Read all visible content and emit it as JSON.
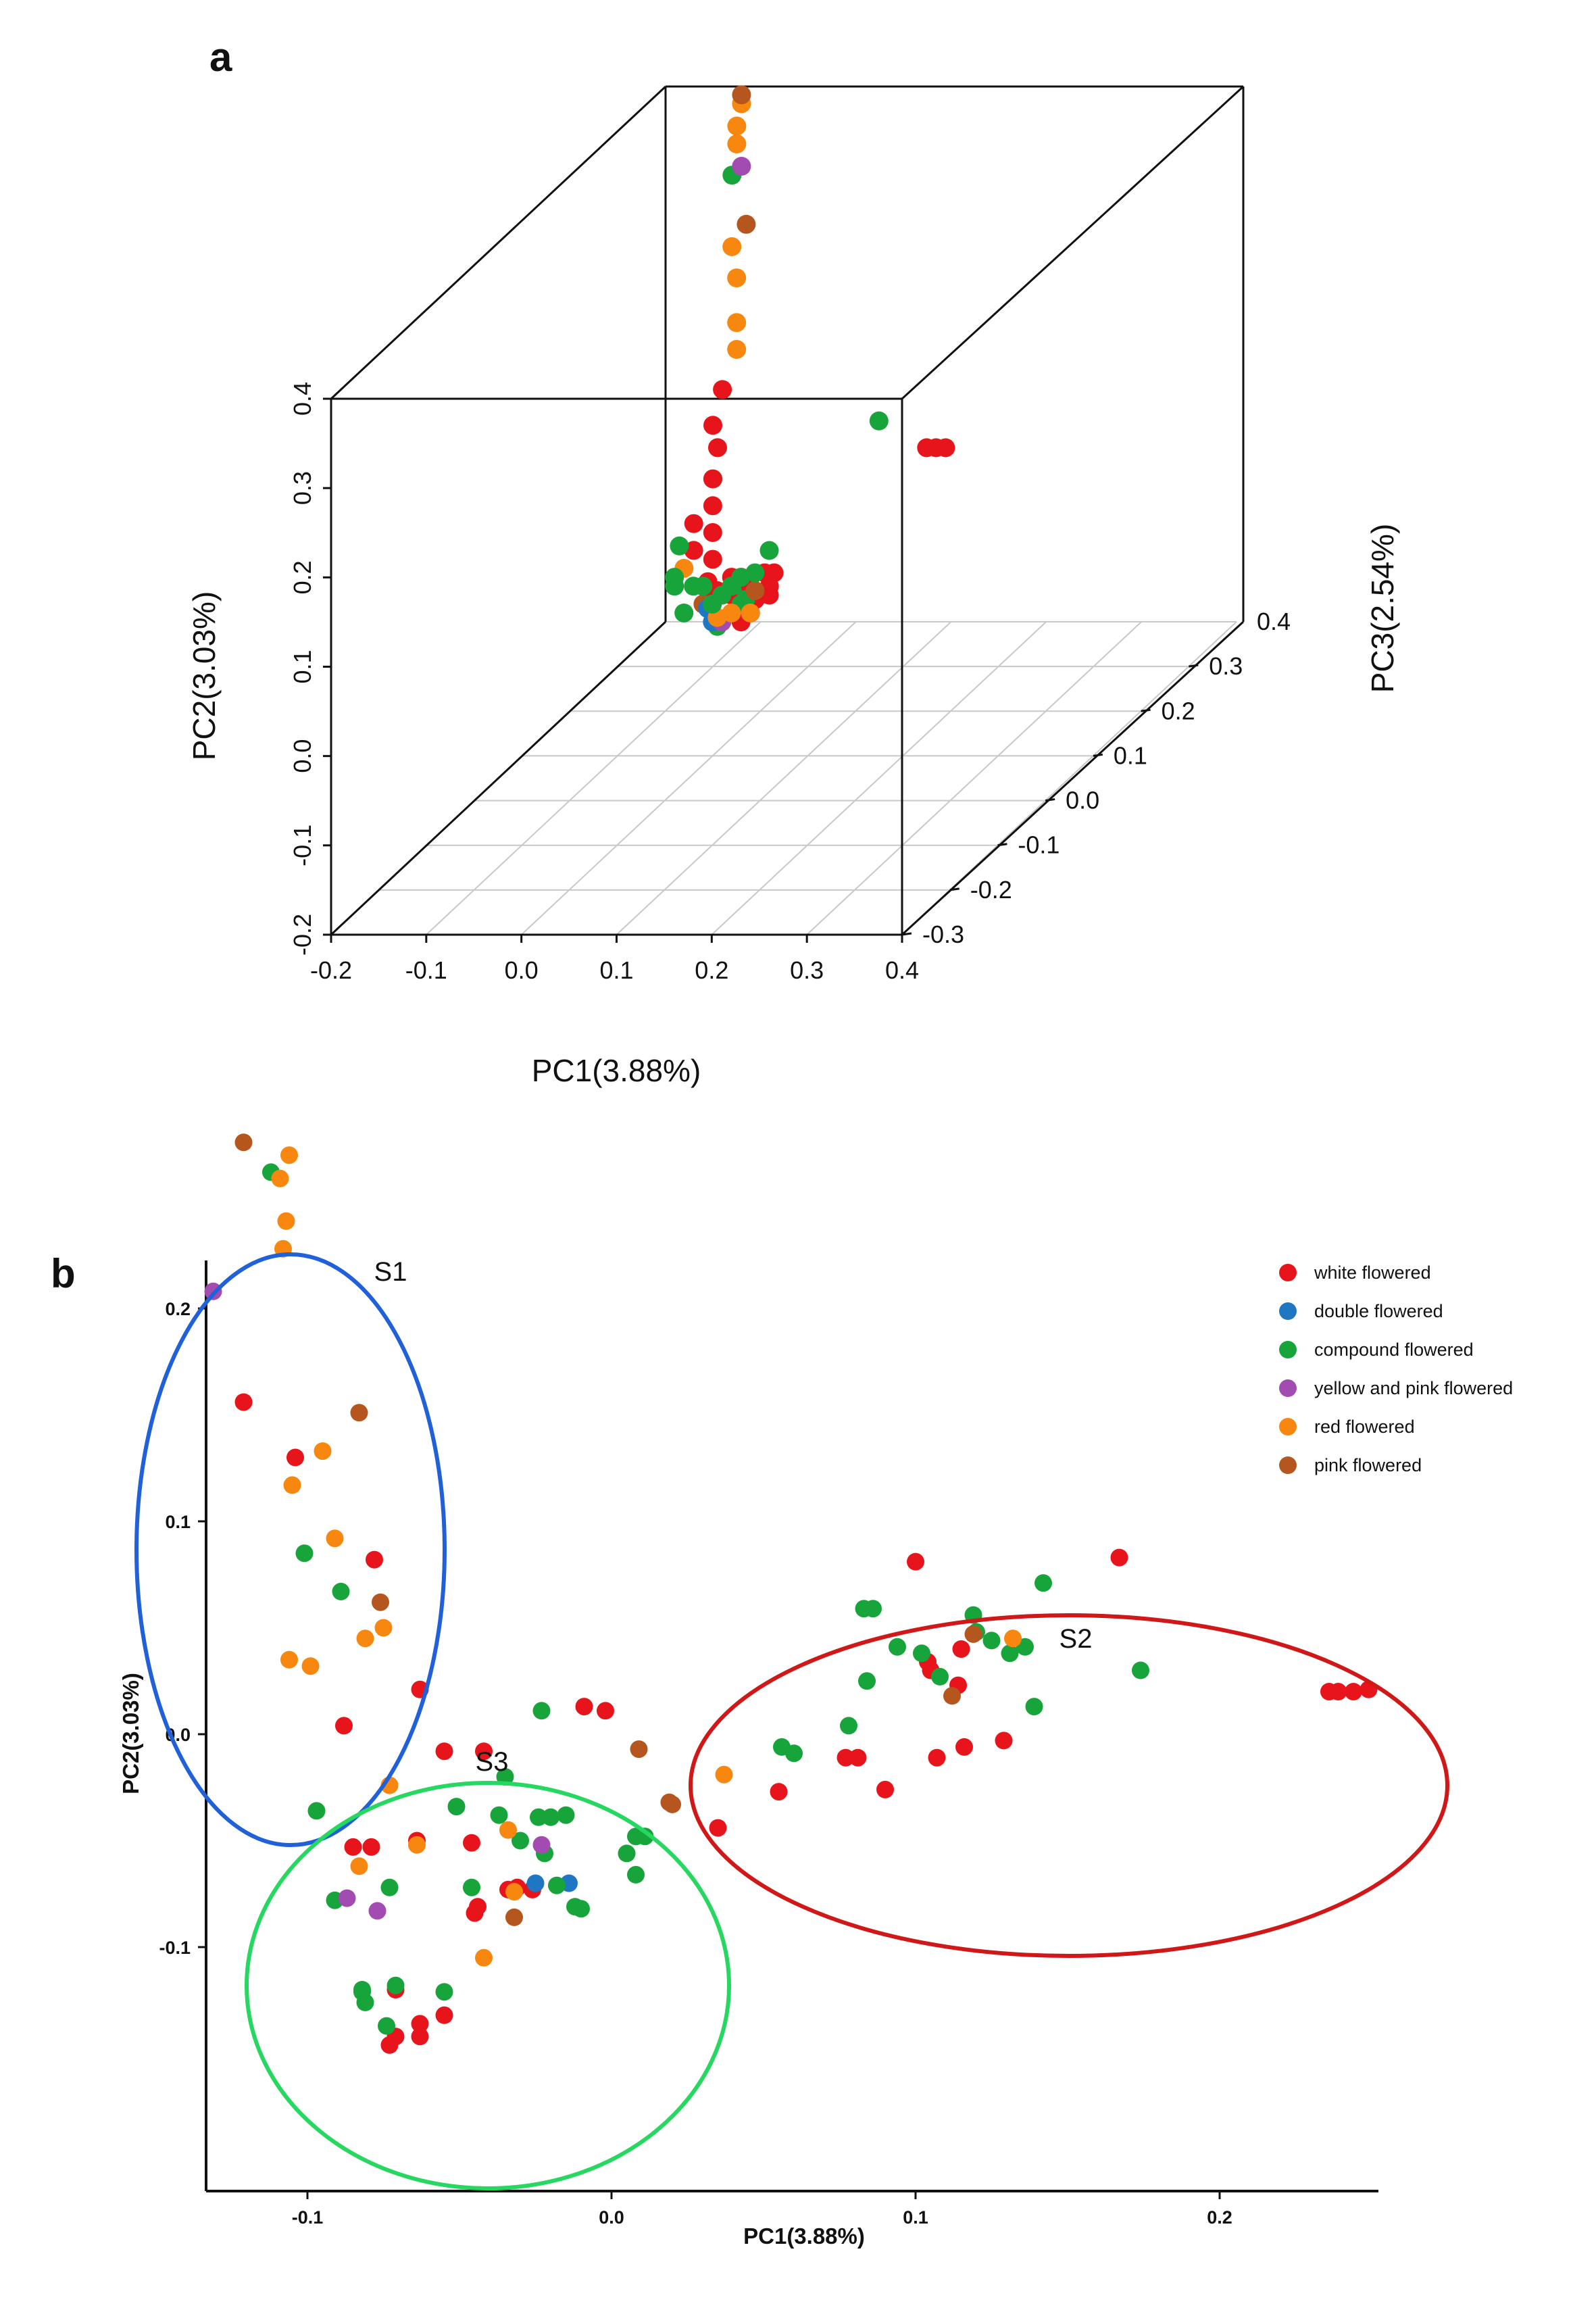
{
  "panel_a": {
    "letter": "a",
    "xlabel": "PC1(3.88%)",
    "ylabel": "PC2(3.03%)",
    "zlabel": "PC3(2.54%)",
    "x_ticks": [
      "-0.2",
      "-0.1",
      "0.0",
      "0.1",
      "0.2",
      "0.3",
      "0.4"
    ],
    "y_ticks": [
      "-0.2",
      "-0.1",
      "0.0",
      "0.1",
      "0.2",
      "0.3",
      "0.4"
    ],
    "z_ticks": [
      "-0.3",
      "-0.2",
      "-0.1",
      "0.0",
      "0.1",
      "0.2",
      "0.3",
      "0.4"
    ]
  },
  "panel_b": {
    "letter": "b",
    "xlabel": "PC1(3.88%)",
    "ylabel": "PC2(3.03%)",
    "x_ticks": [
      "-0.1",
      "0.0",
      "0.1",
      "0.2"
    ],
    "y_ticks": [
      "0.2",
      "0.1",
      "0.0",
      "-0.1"
    ],
    "groups": [
      "S1",
      "S2",
      "S3"
    ],
    "legend": [
      {
        "label": "white flowered",
        "color": "#e8141b"
      },
      {
        "label": "double flowered",
        "color": "#1f77c4"
      },
      {
        "label": "compound flowered",
        "color": "#17a43b"
      },
      {
        "label": "yellow and pink flowered",
        "color": "#a24bb0"
      },
      {
        "label": "red flowered",
        "color": "#f7870f"
      },
      {
        "label": "pink flowered",
        "color": "#b5561f"
      }
    ]
  },
  "chart_data": [
    {
      "type": "scatter",
      "dimensions": 3,
      "xlabel": "PC1(3.88%)",
      "ylabel": "PC2(3.03%)",
      "zlabel": "PC3(2.54%)",
      "xlim": [
        -0.2,
        0.4
      ],
      "ylim": [
        -0.2,
        0.4
      ],
      "zlim": [
        -0.3,
        0.4
      ],
      "series": [
        {
          "name": "white flowered",
          "color": "#e8141b",
          "points": [
            [
              -0.08,
              0.12,
              0.28
            ],
            [
              -0.08,
              0.09,
              0.26
            ],
            [
              -0.07,
              0.07,
              0.25
            ],
            [
              -0.07,
              0.04,
              0.24
            ],
            [
              -0.06,
              0.02,
              0.22
            ],
            [
              -0.05,
              0.0,
              0.2
            ],
            [
              -0.04,
              -0.02,
              0.18
            ],
            [
              -0.03,
              -0.03,
              0.15
            ],
            [
              0.0,
              -0.03,
              0.12
            ],
            [
              0.02,
              -0.02,
              0.1
            ],
            [
              0.04,
              -0.04,
              0.08
            ],
            [
              0.06,
              -0.02,
              0.06
            ],
            [
              0.07,
              0.0,
              0.05
            ],
            [
              0.08,
              0.02,
              0.02
            ],
            [
              0.1,
              0.03,
              0.0
            ],
            [
              0.12,
              0.05,
              -0.02
            ],
            [
              0.14,
              0.08,
              -0.05
            ],
            [
              0.02,
              0.0,
              0.1
            ],
            [
              0.05,
              0.02,
              0.06
            ],
            [
              0.09,
              0.04,
              0.0
            ],
            [
              0.11,
              0.06,
              -0.01
            ],
            [
              0.13,
              0.05,
              -0.04
            ],
            [
              -0.02,
              -0.05,
              0.13
            ],
            [
              0.0,
              -0.01,
              0.09
            ],
            [
              0.03,
              0.01,
              0.05
            ],
            [
              -0.07,
              0.01,
              0.2
            ],
            [
              -0.06,
              -0.01,
              0.18
            ],
            [
              0.25,
              0.17,
              0.05
            ],
            [
              0.26,
              0.17,
              0.05
            ],
            [
              0.27,
              0.17,
              0.05
            ]
          ]
        },
        {
          "name": "double flowered",
          "color": "#1f77c4",
          "points": [
            [
              0.02,
              -0.01,
              0.05
            ],
            [
              0.03,
              -0.02,
              0.04
            ]
          ]
        },
        {
          "name": "compound flowered",
          "color": "#17a43b",
          "points": [
            [
              -0.09,
              0.02,
              0.28
            ],
            [
              -0.08,
              0.35,
              0.3
            ],
            [
              -0.06,
              0.01,
              0.15
            ],
            [
              -0.05,
              -0.02,
              0.12
            ],
            [
              -0.04,
              0.0,
              0.1
            ],
            [
              -0.02,
              -0.03,
              0.08
            ],
            [
              0.0,
              0.01,
              0.06
            ],
            [
              0.02,
              0.02,
              0.04
            ],
            [
              0.04,
              0.01,
              0.02
            ],
            [
              0.06,
              0.03,
              0.0
            ],
            [
              0.08,
              0.05,
              -0.02
            ],
            [
              0.1,
              0.07,
              -0.04
            ],
            [
              0.13,
              0.09,
              -0.07
            ],
            [
              0.14,
              0.11,
              -0.06
            ],
            [
              0.03,
              -0.04,
              0.1
            ],
            [
              0.05,
              -0.01,
              0.06
            ],
            [
              0.07,
              0.02,
              0.03
            ],
            [
              0.09,
              0.03,
              -0.01
            ],
            [
              -0.01,
              -0.05,
              0.12
            ],
            [
              0.0,
              -0.06,
              0.11
            ],
            [
              0.2,
              0.2,
              0.05
            ]
          ]
        },
        {
          "name": "yellow and pink flowered",
          "color": "#a24bb0",
          "points": [
            [
              -0.07,
              0.36,
              0.3
            ],
            [
              0.02,
              -0.02,
              0.06
            ],
            [
              0.04,
              -0.02,
              0.04
            ]
          ]
        },
        {
          "name": "red flowered",
          "color": "#f7870f",
          "points": [
            [
              -0.08,
              0.42,
              0.32
            ],
            [
              -0.08,
              0.4,
              0.31
            ],
            [
              -0.08,
              0.38,
              0.31
            ],
            [
              -0.07,
              0.28,
              0.28
            ],
            [
              -0.06,
              0.25,
              0.27
            ],
            [
              -0.06,
              0.2,
              0.27
            ],
            [
              -0.05,
              0.18,
              0.25
            ],
            [
              -0.04,
              0.0,
              0.12
            ],
            [
              0.0,
              -0.04,
              0.1
            ],
            [
              0.04,
              -0.01,
              0.03
            ],
            [
              0.06,
              0.0,
              0.02
            ],
            [
              0.1,
              0.02,
              -0.02
            ]
          ]
        },
        {
          "name": "pink flowered",
          "color": "#b5561f",
          "points": [
            [
              -0.08,
              0.43,
              0.32
            ],
            [
              -0.06,
              0.3,
              0.29
            ],
            [
              0.12,
              0.06,
              -0.05
            ],
            [
              0.0,
              -0.02,
              0.08
            ]
          ]
        }
      ]
    },
    {
      "type": "scatter",
      "xlabel": "PC1(3.88%)",
      "ylabel": "PC2(3.03%)",
      "xlim": [
        -0.135,
        0.255
      ],
      "ylim": [
        -0.155,
        0.285
      ],
      "groups": [
        "S1",
        "S2",
        "S3"
      ],
      "series": [
        {
          "name": "white flowered",
          "color": "#e8141b",
          "points": [
            [
              -0.121,
              0.156
            ],
            [
              -0.104,
              0.13
            ],
            [
              -0.078,
              0.082
            ],
            [
              -0.088,
              0.004
            ],
            [
              -0.063,
              0.021
            ],
            [
              -0.055,
              -0.008
            ],
            [
              -0.042,
              -0.008
            ],
            [
              -0.009,
              0.013
            ],
            [
              -0.002,
              0.011
            ],
            [
              -0.085,
              -0.053
            ],
            [
              -0.079,
              -0.053
            ],
            [
              -0.064,
              -0.05
            ],
            [
              -0.046,
              -0.051
            ],
            [
              -0.034,
              -0.073
            ],
            [
              -0.044,
              -0.081
            ],
            [
              -0.045,
              -0.084
            ],
            [
              -0.031,
              -0.072
            ],
            [
              -0.026,
              -0.073
            ],
            [
              -0.073,
              -0.146
            ],
            [
              -0.071,
              -0.142
            ],
            [
              -0.063,
              -0.142
            ],
            [
              -0.063,
              -0.136
            ],
            [
              -0.055,
              -0.132
            ],
            [
              -0.071,
              -0.12
            ],
            [
              0.035,
              -0.044
            ],
            [
              0.055,
              -0.027
            ],
            [
              0.077,
              -0.011
            ],
            [
              0.081,
              -0.011
            ],
            [
              0.09,
              -0.026
            ],
            [
              0.1,
              0.081
            ],
            [
              0.104,
              0.034
            ],
            [
              0.105,
              0.03
            ],
            [
              0.107,
              -0.011
            ],
            [
              0.115,
              0.04
            ],
            [
              0.114,
              0.023
            ],
            [
              0.116,
              -0.006
            ],
            [
              0.129,
              -0.003
            ],
            [
              0.167,
              0.083
            ],
            [
              0.236,
              0.02
            ],
            [
              0.239,
              0.02
            ],
            [
              0.244,
              0.02
            ],
            [
              0.249,
              0.021
            ]
          ]
        },
        {
          "name": "double flowered",
          "color": "#1f77c4",
          "points": [
            [
              -0.014,
              -0.07
            ],
            [
              -0.025,
              -0.07
            ]
          ]
        },
        {
          "name": "compound flowered",
          "color": "#17a43b",
          "points": [
            [
              -0.112,
              0.264
            ],
            [
              -0.101,
              0.085
            ],
            [
              -0.089,
              0.067
            ],
            [
              -0.097,
              -0.036
            ],
            [
              -0.091,
              -0.078
            ],
            [
              -0.073,
              -0.072
            ],
            [
              -0.082,
              -0.12
            ],
            [
              -0.081,
              -0.126
            ],
            [
              -0.071,
              -0.118
            ],
            [
              -0.074,
              -0.137
            ],
            [
              -0.051,
              -0.034
            ],
            [
              -0.046,
              -0.072
            ],
            [
              -0.035,
              -0.02
            ],
            [
              -0.03,
              -0.05
            ],
            [
              -0.022,
              -0.056
            ],
            [
              -0.024,
              -0.039
            ],
            [
              -0.023,
              0.011
            ],
            [
              -0.02,
              -0.039
            ],
            [
              -0.012,
              -0.081
            ],
            [
              -0.037,
              -0.038
            ],
            [
              -0.018,
              -0.071
            ],
            [
              -0.01,
              -0.082
            ],
            [
              -0.015,
              -0.038
            ],
            [
              0.008,
              -0.048
            ],
            [
              0.005,
              -0.056
            ],
            [
              0.008,
              -0.066
            ],
            [
              0.011,
              -0.048
            ],
            [
              -0.082,
              -0.121
            ],
            [
              0.056,
              -0.006
            ],
            [
              0.06,
              -0.009
            ],
            [
              0.078,
              0.004
            ],
            [
              0.083,
              0.059
            ],
            [
              0.086,
              0.059
            ],
            [
              0.084,
              0.025
            ],
            [
              0.094,
              0.041
            ],
            [
              0.102,
              0.038
            ],
            [
              0.108,
              0.027
            ],
            [
              0.119,
              0.056
            ],
            [
              0.12,
              0.048
            ],
            [
              0.125,
              0.044
            ],
            [
              0.131,
              0.038
            ],
            [
              0.136,
              0.041
            ],
            [
              0.139,
              0.013
            ],
            [
              0.142,
              0.071
            ],
            [
              0.174,
              0.03
            ],
            [
              -0.055,
              -0.121
            ]
          ]
        },
        {
          "name": "yellow and pink flowered",
          "color": "#a24bb0",
          "points": [
            [
              -0.131,
              0.208
            ],
            [
              -0.087,
              -0.077
            ],
            [
              -0.077,
              -0.083
            ],
            [
              -0.023,
              -0.052
            ]
          ]
        },
        {
          "name": "red flowered",
          "color": "#f7870f",
          "points": [
            [
              -0.106,
              0.272
            ],
            [
              -0.109,
              0.261
            ],
            [
              -0.107,
              0.241
            ],
            [
              -0.108,
              0.228
            ],
            [
              -0.095,
              0.133
            ],
            [
              -0.105,
              0.117
            ],
            [
              -0.091,
              0.092
            ],
            [
              -0.106,
              0.035
            ],
            [
              -0.099,
              0.032
            ],
            [
              -0.081,
              0.045
            ],
            [
              -0.075,
              0.05
            ],
            [
              -0.073,
              -0.024
            ],
            [
              -0.083,
              -0.062
            ],
            [
              -0.064,
              -0.052
            ],
            [
              -0.042,
              -0.105
            ],
            [
              -0.032,
              -0.074
            ],
            [
              -0.034,
              -0.045
            ],
            [
              0.037,
              -0.019
            ],
            [
              0.132,
              0.045
            ]
          ]
        },
        {
          "name": "pink flowered",
          "color": "#b5561f",
          "points": [
            [
              -0.121,
              0.278
            ],
            [
              -0.083,
              0.151
            ],
            [
              -0.076,
              0.062
            ],
            [
              -0.032,
              -0.086
            ],
            [
              0.009,
              -0.007
            ],
            [
              0.019,
              -0.032
            ],
            [
              0.02,
              -0.033
            ],
            [
              0.119,
              0.047
            ],
            [
              0.112,
              0.018
            ]
          ]
        }
      ]
    }
  ]
}
